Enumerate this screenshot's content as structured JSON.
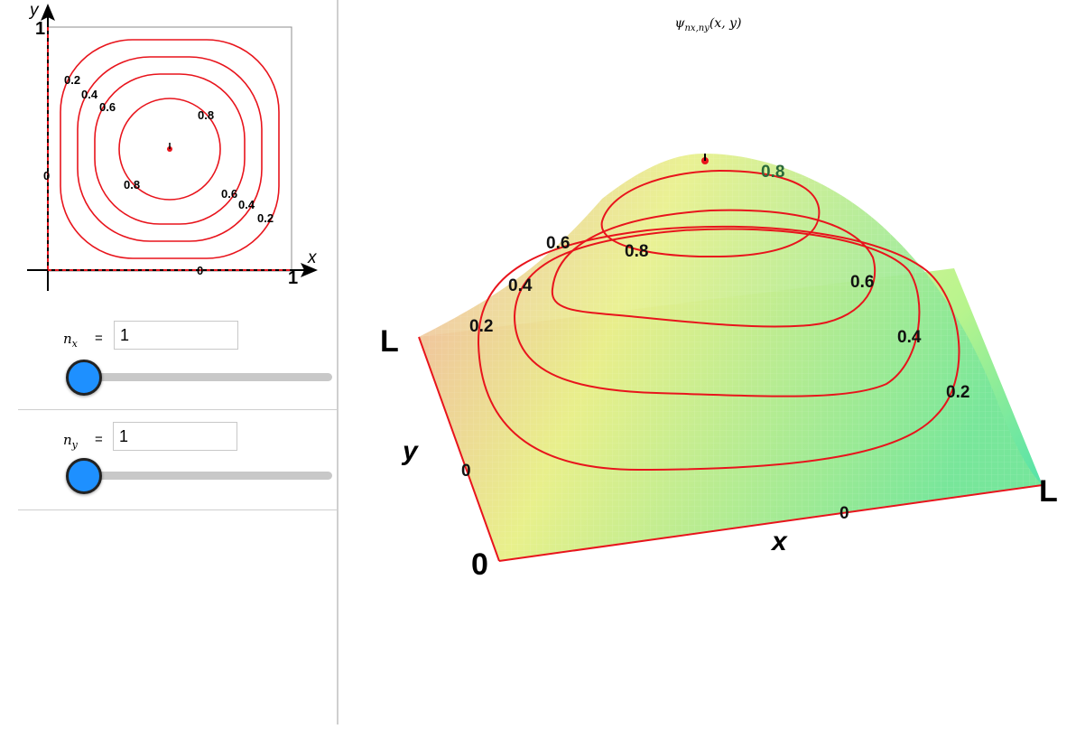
{
  "contour_plot": {
    "axis_x_label": "x",
    "axis_y_label": "y",
    "x_max_label": "1",
    "y_max_label": "1",
    "zero_label_left": "0",
    "zero_label_bottom": "0",
    "contour_labels": [
      "0.2",
      "0.4",
      "0.6",
      "0.8",
      "0.8",
      "0.6",
      "0.4",
      "0.2"
    ],
    "line_color": "#e8141c"
  },
  "sliders": [
    {
      "symbol": "n",
      "subscript": "x",
      "equals": "=",
      "value": "1"
    },
    {
      "symbol": "n",
      "subscript": "y",
      "equals": "=",
      "value": "1"
    }
  ],
  "surface_plot": {
    "title_symbol": "ψ",
    "title_subscript": "nx,ny",
    "title_args": "(x, y)",
    "corner_origin": "0",
    "corner_left": "L",
    "corner_right": "L",
    "axis_x_label": "x",
    "axis_y_label": "y",
    "edge_zero_left": "0",
    "edge_zero_bottom": "0",
    "contour_labels": [
      "0.2",
      "0.4",
      "0.6",
      "0.8",
      "0.8",
      "0.6",
      "0.4",
      "0.2"
    ]
  }
}
